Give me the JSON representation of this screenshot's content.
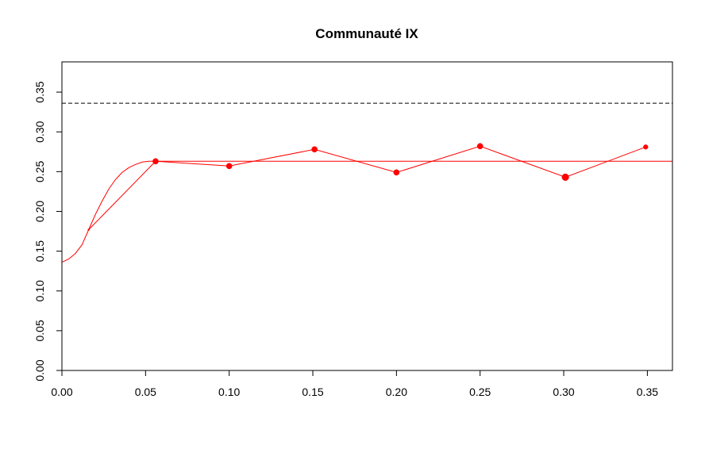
{
  "chart_data": {
    "type": "line",
    "title": "Communauté IX",
    "xlabel": "",
    "ylabel": "",
    "xlim": [
      0.0,
      0.365
    ],
    "ylim": [
      0.0,
      0.388
    ],
    "x_ticks": [
      {
        "value": 0.0,
        "label": "0.00"
      },
      {
        "value": 0.05,
        "label": "0.05"
      },
      {
        "value": 0.1,
        "label": "0.10"
      },
      {
        "value": 0.15,
        "label": "0.15"
      },
      {
        "value": 0.2,
        "label": "0.20"
      },
      {
        "value": 0.25,
        "label": "0.25"
      },
      {
        "value": 0.3,
        "label": "0.30"
      },
      {
        "value": 0.35,
        "label": "0.35"
      }
    ],
    "y_ticks": [
      {
        "value": 0.0,
        "label": "0.00"
      },
      {
        "value": 0.05,
        "label": "0.05"
      },
      {
        "value": 0.1,
        "label": "0.10"
      },
      {
        "value": 0.15,
        "label": "0.15"
      },
      {
        "value": 0.2,
        "label": "0.20"
      },
      {
        "value": 0.25,
        "label": "0.25"
      },
      {
        "value": 0.3,
        "label": "0.30"
      },
      {
        "value": 0.35,
        "label": "0.35"
      }
    ],
    "grid": false,
    "legend": "none",
    "series": [
      {
        "kind": "points-lines",
        "color": "#ff0000",
        "x": [
          0.016,
          0.056,
          0.1,
          0.151,
          0.2,
          0.25,
          0.301,
          0.349
        ],
        "y": [
          0.177,
          0.263,
          0.257,
          0.278,
          0.249,
          0.282,
          0.243,
          0.281
        ],
        "marker_sizes": [
          0,
          1,
          1,
          1,
          1,
          1,
          1.2,
          0.8
        ]
      },
      {
        "kind": "fitted-curve",
        "color": "#ff0000",
        "x": [
          0.0,
          0.004,
          0.008,
          0.012,
          0.016,
          0.02,
          0.024,
          0.028,
          0.032,
          0.036,
          0.04,
          0.044,
          0.048,
          0.052,
          0.056,
          0.06,
          0.1,
          0.2,
          0.3,
          0.365
        ],
        "y": [
          0.136,
          0.14,
          0.147,
          0.158,
          0.177,
          0.196,
          0.213,
          0.228,
          0.24,
          0.249,
          0.255,
          0.259,
          0.262,
          0.263,
          0.263,
          0.263,
          0.263,
          0.263,
          0.263,
          0.263
        ]
      }
    ],
    "reference_lines": [
      {
        "orientation": "horizontal",
        "y": 0.336,
        "style": "dashed",
        "color": "#000000"
      }
    ]
  }
}
